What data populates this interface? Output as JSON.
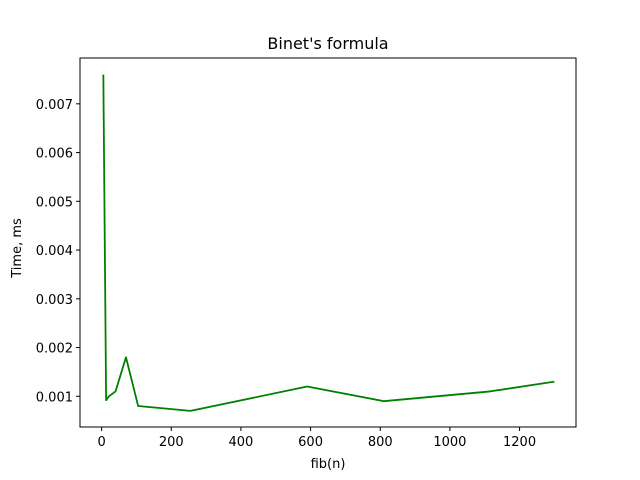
{
  "chart_data": {
    "type": "line",
    "title": "Binet's formula",
    "xlabel": "fib(n)",
    "ylabel": "Time, ms",
    "xlim": [
      -62,
      1362
    ],
    "ylim": [
      0.00037,
      0.00794
    ],
    "xticks": [
      0,
      200,
      400,
      600,
      800,
      1000,
      1200
    ],
    "xtick_labels": [
      "0",
      "200",
      "400",
      "600",
      "800",
      "1000",
      "1200"
    ],
    "yticks": [
      0.001,
      0.002,
      0.003,
      0.004,
      0.005,
      0.006,
      0.007
    ],
    "ytick_labels": [
      "0.001",
      "0.002",
      "0.003",
      "0.004",
      "0.005",
      "0.006",
      "0.007"
    ],
    "grid": false,
    "line_color": "#008000",
    "series": [
      {
        "x": [
          5,
          13,
          21,
          40,
          70,
          105,
          255,
          590,
          810,
          1115,
          1300
        ],
        "y": [
          0.0076,
          0.00092,
          0.001,
          0.0011,
          0.0018,
          0.0008,
          0.0007,
          0.0012,
          0.0009,
          0.0011,
          0.0013
        ]
      }
    ]
  }
}
